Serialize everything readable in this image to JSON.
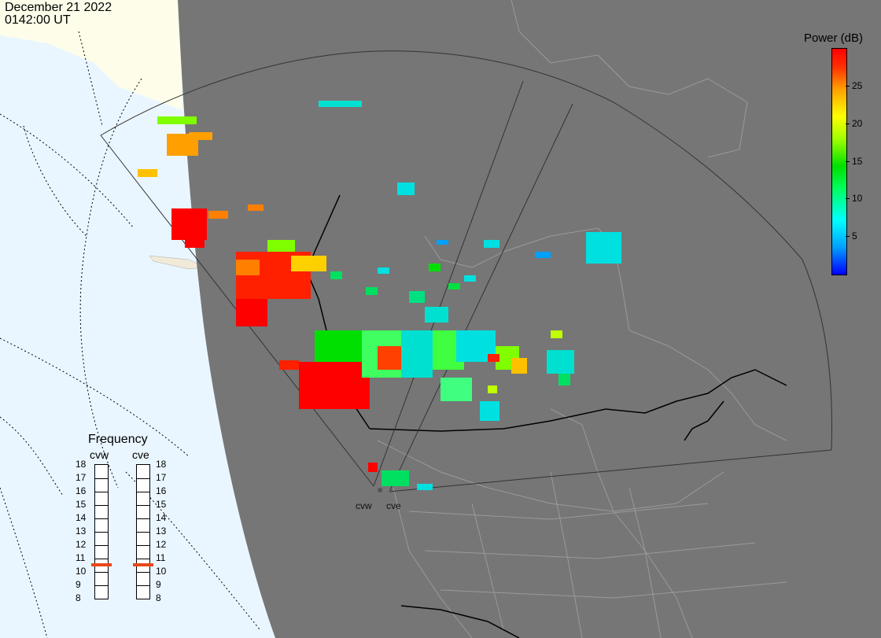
{
  "header": {
    "date": "December 21 2022",
    "time": "0142:00 UT"
  },
  "colorbar": {
    "title": "Power (dB)",
    "ticks": [
      "25",
      "20",
      "15",
      "10",
      "5"
    ],
    "range": [
      0,
      30
    ],
    "colors": [
      "#0000ff",
      "#00a0ff",
      "#00ffff",
      "#00ff60",
      "#00e000",
      "#a0ff00",
      "#ffff00",
      "#ffa000",
      "#ff3000",
      "#ff0000"
    ]
  },
  "frequency": {
    "title": "Frequency",
    "radars": [
      "cvw",
      "cve"
    ],
    "scale": [
      "18",
      "17",
      "16",
      "15",
      "14",
      "13",
      "12",
      "11",
      "10",
      "9",
      "8"
    ],
    "cvw_value": 10.5,
    "cve_value": 10.5,
    "marker_color": "#e8481a"
  },
  "radar_sites": [
    "cvw",
    "cve"
  ],
  "colors": {
    "ocean": "#eaf6ff",
    "land_day": "#fdfdea",
    "night": "#767676",
    "grid": "#000000"
  }
}
